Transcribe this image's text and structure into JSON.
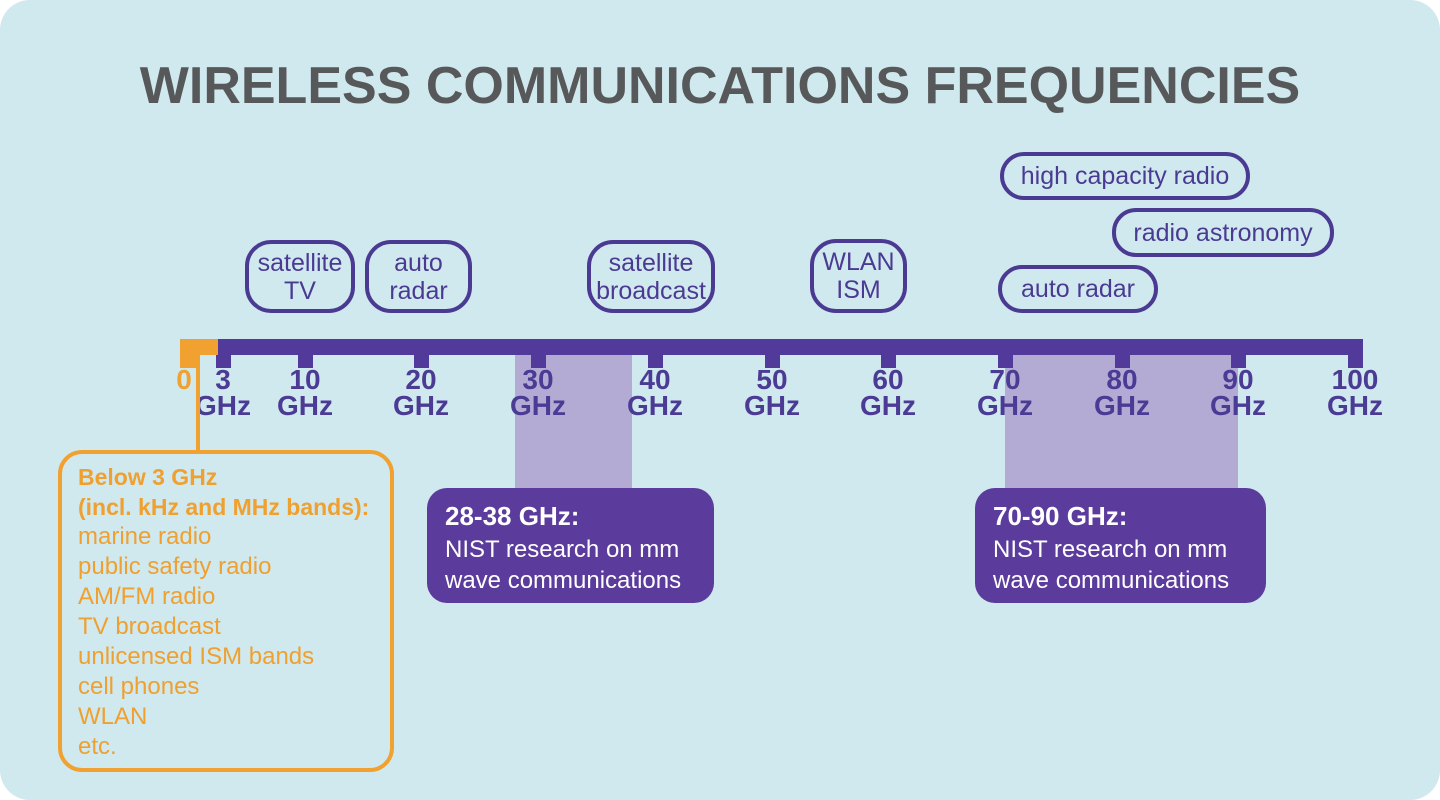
{
  "title": "WIRELESS COMMUNICATIONS FREQUENCIES",
  "colors": {
    "background": "#d0e9ef",
    "title_gray": "#57585a",
    "purple_dark": "#513a9a",
    "purple_text": "#4c3b94",
    "purple_callout_bg": "#5b3b9c",
    "lavender_band": "#b3abd4",
    "orange": "#f0a12f",
    "white": "#ffffff"
  },
  "axis": {
    "unit": "GHz",
    "min_ghz": 0,
    "max_ghz": 100,
    "ticks": [
      {
        "value": "0",
        "unit": "",
        "orange": true
      },
      {
        "value": "3",
        "unit": "GHz",
        "orange": false
      },
      {
        "value": "10",
        "unit": "GHz",
        "orange": false
      },
      {
        "value": "20",
        "unit": "GHz",
        "orange": false
      },
      {
        "value": "30",
        "unit": "GHz",
        "orange": false
      },
      {
        "value": "40",
        "unit": "GHz",
        "orange": false
      },
      {
        "value": "50",
        "unit": "GHz",
        "orange": false
      },
      {
        "value": "60",
        "unit": "GHz",
        "orange": false
      },
      {
        "value": "70",
        "unit": "GHz",
        "orange": false
      },
      {
        "value": "80",
        "unit": "GHz",
        "orange": false
      },
      {
        "value": "90",
        "unit": "GHz",
        "orange": false
      },
      {
        "value": "100",
        "unit": "GHz",
        "orange": false
      }
    ]
  },
  "bubbles": [
    {
      "name": "satellite-tv",
      "lines": [
        "satellite",
        "TV"
      ]
    },
    {
      "name": "auto-radar-left",
      "lines": [
        "auto",
        "radar"
      ]
    },
    {
      "name": "satellite-broadcast",
      "lines": [
        "satellite",
        "broadcast"
      ]
    },
    {
      "name": "wlan-ism",
      "lines": [
        "WLAN",
        "ISM"
      ]
    },
    {
      "name": "high-capacity-radio",
      "lines": [
        "high capacity radio"
      ]
    },
    {
      "name": "radio-astronomy",
      "lines": [
        "radio astronomy"
      ]
    },
    {
      "name": "auto-radar-right",
      "lines": [
        "auto radar"
      ]
    }
  ],
  "highlight_bands": [
    {
      "range_ghz": [
        28,
        38
      ]
    },
    {
      "range_ghz": [
        70,
        90
      ]
    }
  ],
  "callouts": [
    {
      "heading": "28-38 GHz:",
      "body": "NIST research on mm wave communications"
    },
    {
      "heading": "70-90 GHz:",
      "body": "NIST research on mm wave communications"
    }
  ],
  "below_box": {
    "heading_lines": [
      "Below 3 GHz",
      "(incl. kHz and MHz bands):"
    ],
    "items": [
      "marine radio",
      "public safety radio",
      "AM/FM radio",
      "TV broadcast",
      "unlicensed ISM bands",
      "cell phones",
      "WLAN",
      "etc."
    ]
  }
}
